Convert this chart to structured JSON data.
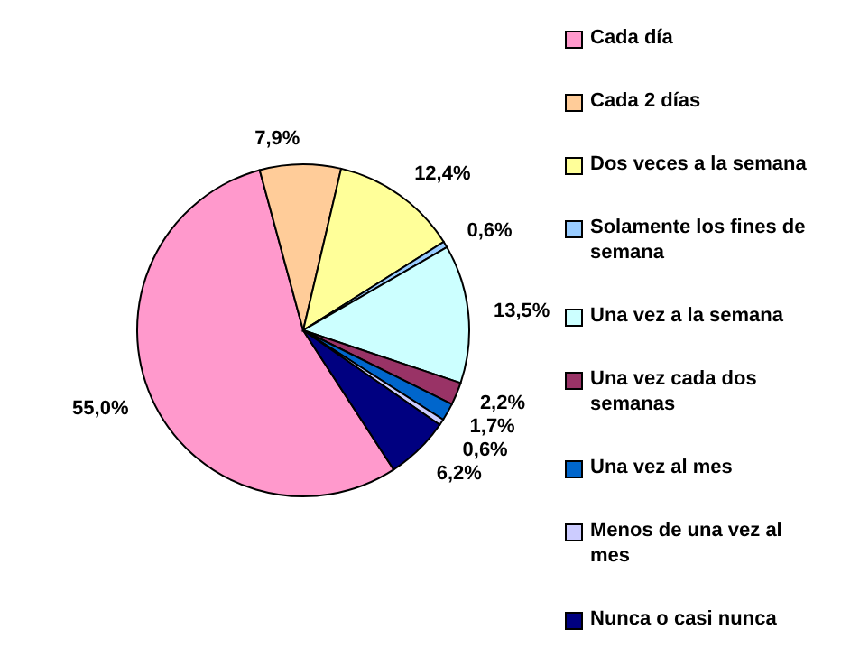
{
  "chart_data": {
    "type": "pie",
    "categories": [
      "Cada día",
      "Cada 2 días",
      "Dos veces a la semana",
      "Solamente los fines de semana",
      "Una vez a la semana",
      "Una vez cada dos semanas",
      "Una vez al mes",
      "Menos de una vez al mes",
      "Nunca o casi nunca"
    ],
    "values": [
      55.0,
      7.9,
      12.4,
      0.6,
      13.5,
      2.2,
      1.7,
      0.6,
      6.2
    ],
    "value_labels": [
      "55,0%",
      "7,9%",
      "12,4%",
      "0,6%",
      "13,5%",
      "2,2%",
      "1,7%",
      "0,6%",
      "6,2%"
    ],
    "colors": [
      "#ff99cc",
      "#ffcc99",
      "#ffff99",
      "#99ccff",
      "#ccffff",
      "#993366",
      "#0066cc",
      "#ccccff",
      "#000080"
    ],
    "legend": "right"
  }
}
